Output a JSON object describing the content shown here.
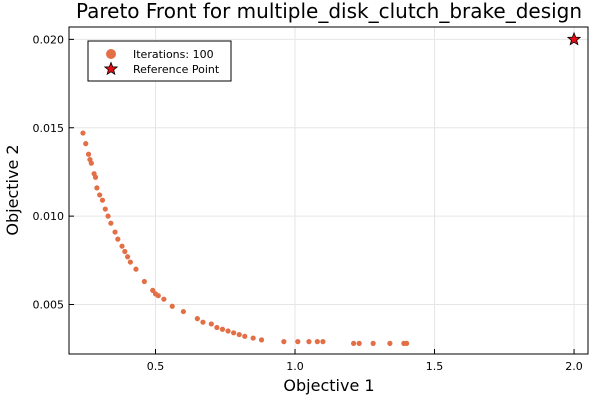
{
  "chart_data": {
    "type": "scatter",
    "title": "Pareto Front for multiple_disk_clutch_brake_design",
    "xlabel": "Objective 1",
    "ylabel": "Objective 2",
    "xlim": [
      0.19,
      2.05
    ],
    "ylim": [
      0.0022,
      0.0207
    ],
    "xticks": [
      0.5,
      1.0,
      1.5,
      2.0
    ],
    "xtick_labels": [
      "0.5",
      "1.0",
      "1.5",
      "2.0"
    ],
    "yticks": [
      0.005,
      0.01,
      0.015,
      0.02
    ],
    "ytick_labels": [
      "0.005",
      "0.010",
      "0.015",
      "0.020"
    ],
    "grid": true,
    "legend_position": "top-left",
    "colors": {
      "series": "#e26f46",
      "reference": "#e30e16",
      "grid": "#e6e6e6"
    },
    "series": [
      {
        "name": "Iterations: 100",
        "marker": "circle",
        "points": [
          [
            0.24,
            0.0147
          ],
          [
            0.25,
            0.0141
          ],
          [
            0.26,
            0.0135
          ],
          [
            0.265,
            0.0132
          ],
          [
            0.27,
            0.013
          ],
          [
            0.28,
            0.0124
          ],
          [
            0.285,
            0.0122
          ],
          [
            0.29,
            0.0116
          ],
          [
            0.3,
            0.0112
          ],
          [
            0.31,
            0.0109
          ],
          [
            0.32,
            0.0104
          ],
          [
            0.33,
            0.01
          ],
          [
            0.34,
            0.0096
          ],
          [
            0.355,
            0.0091
          ],
          [
            0.365,
            0.0087
          ],
          [
            0.38,
            0.0083
          ],
          [
            0.39,
            0.008
          ],
          [
            0.4,
            0.0077
          ],
          [
            0.41,
            0.0074
          ],
          [
            0.43,
            0.007
          ],
          [
            0.46,
            0.0063
          ],
          [
            0.49,
            0.0058
          ],
          [
            0.5,
            0.0056
          ],
          [
            0.51,
            0.0055
          ],
          [
            0.53,
            0.0053
          ],
          [
            0.56,
            0.0049
          ],
          [
            0.6,
            0.0046
          ],
          [
            0.65,
            0.0042
          ],
          [
            0.67,
            0.004
          ],
          [
            0.7,
            0.0039
          ],
          [
            0.72,
            0.0037
          ],
          [
            0.74,
            0.0036
          ],
          [
            0.76,
            0.0035
          ],
          [
            0.78,
            0.0034
          ],
          [
            0.8,
            0.0033
          ],
          [
            0.82,
            0.0032
          ],
          [
            0.85,
            0.0031
          ],
          [
            0.88,
            0.003
          ],
          [
            0.96,
            0.0029
          ],
          [
            1.01,
            0.0029
          ],
          [
            1.05,
            0.0029
          ],
          [
            1.08,
            0.0029
          ],
          [
            1.1,
            0.0029
          ],
          [
            1.21,
            0.0028
          ],
          [
            1.23,
            0.0028
          ],
          [
            1.28,
            0.0028
          ],
          [
            1.34,
            0.0028
          ],
          [
            1.39,
            0.0028
          ],
          [
            1.4,
            0.0028
          ]
        ]
      },
      {
        "name": "Reference Point",
        "marker": "star",
        "points": [
          [
            2.0,
            0.02
          ]
        ]
      }
    ]
  }
}
